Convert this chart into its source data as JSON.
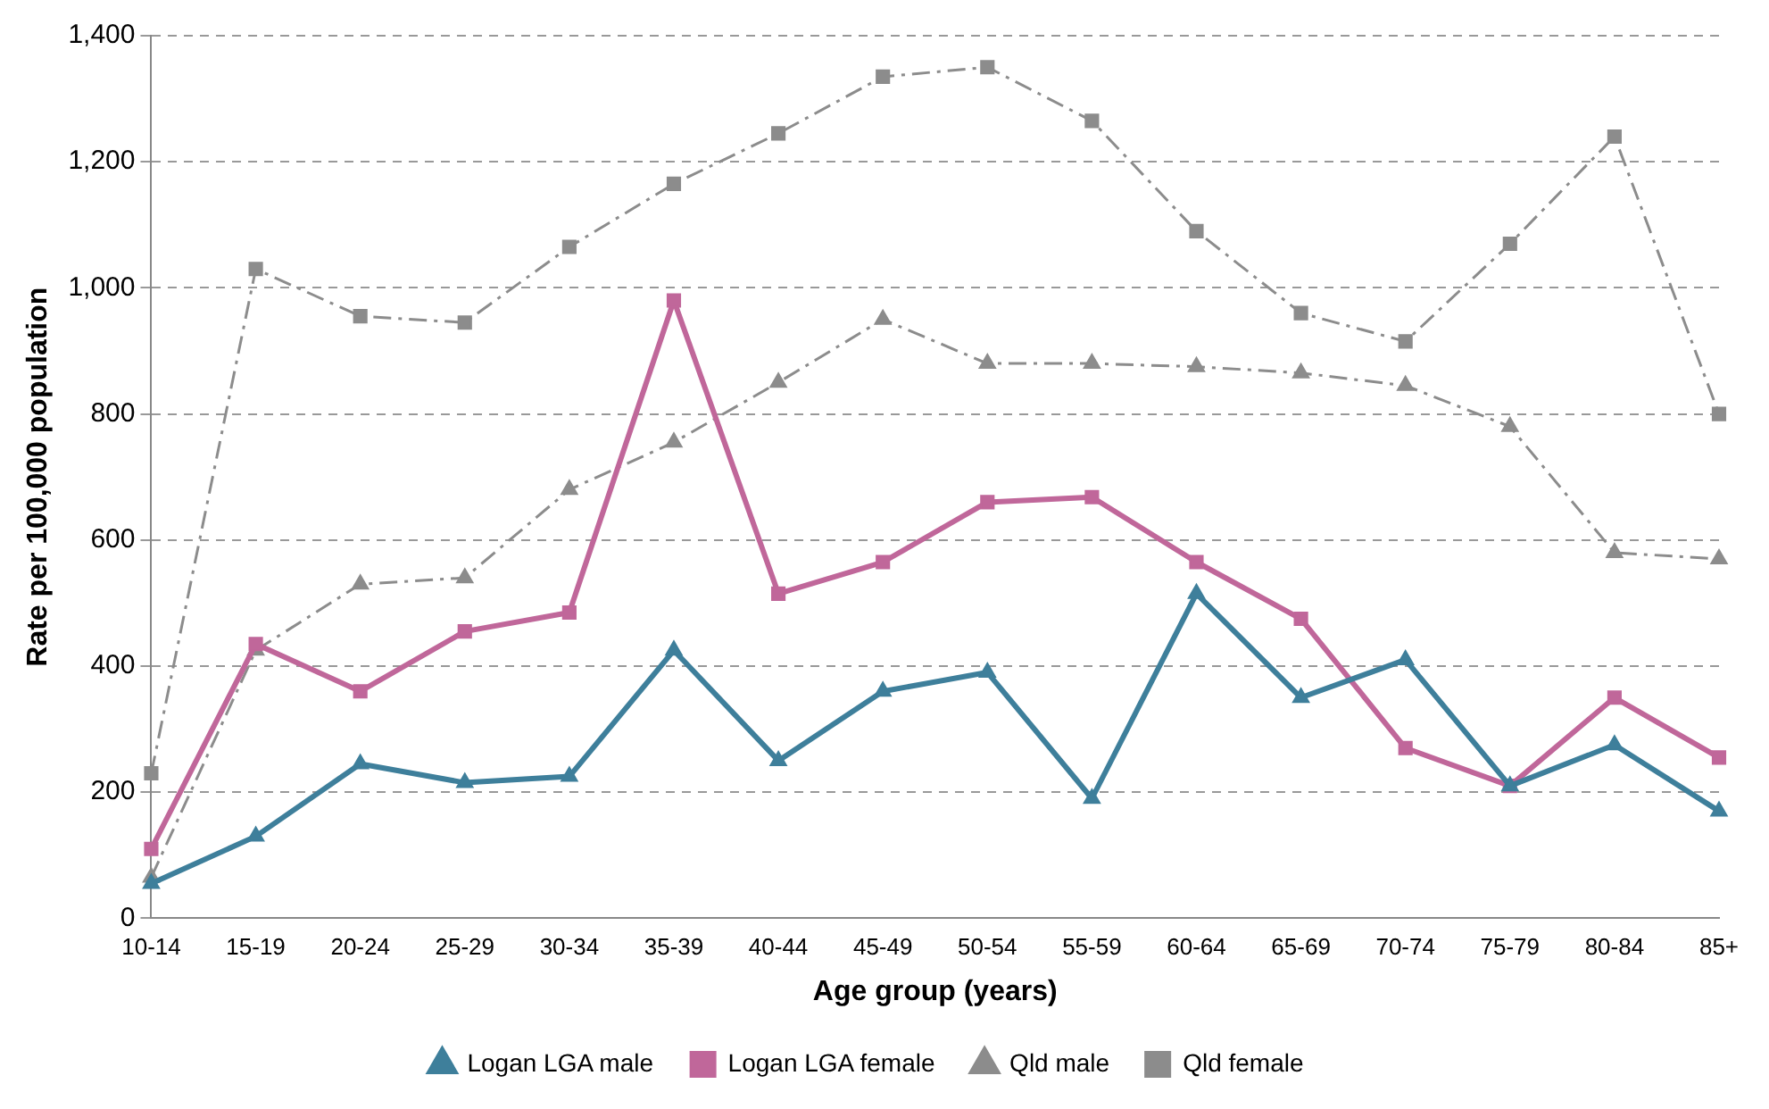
{
  "chart_data": {
    "type": "line",
    "xlabel": "Age group (years)",
    "ylabel": "Rate per 100,000 population",
    "categories": [
      "10-14",
      "15-19",
      "20-24",
      "25-29",
      "30-34",
      "35-39",
      "40-44",
      "45-49",
      "50-54",
      "55-59",
      "60-64",
      "65-69",
      "70-74",
      "75-79",
      "80-84",
      "85+"
    ],
    "series": [
      {
        "name": "Logan LGA male",
        "color": "#3e7f9b",
        "marker": "triangle",
        "line_style": "solid",
        "values": [
          55,
          130,
          245,
          215,
          225,
          425,
          250,
          360,
          390,
          190,
          515,
          350,
          410,
          210,
          275,
          170
        ]
      },
      {
        "name": "Logan LGA female",
        "color": "#c0679a",
        "marker": "square",
        "line_style": "solid",
        "values": [
          110,
          435,
          360,
          455,
          485,
          980,
          515,
          565,
          660,
          668,
          565,
          475,
          270,
          210,
          350,
          255
        ]
      },
      {
        "name": "Qld male",
        "color": "#8c8c8c",
        "marker": "triangle",
        "line_style": "dashed",
        "values": [
          65,
          425,
          530,
          540,
          680,
          755,
          850,
          950,
          880,
          880,
          875,
          865,
          845,
          780,
          580,
          570
        ]
      },
      {
        "name": "Qld female",
        "color": "#8c8c8c",
        "marker": "square",
        "line_style": "dashed",
        "values": [
          230,
          1030,
          955,
          945,
          1065,
          1165,
          1245,
          1335,
          1350,
          1265,
          1090,
          960,
          915,
          1070,
          1240,
          800
        ]
      }
    ],
    "ylim": [
      0,
      1400
    ],
    "yticks": [
      0,
      200,
      400,
      600,
      800,
      {
        "value": 1000,
        "label": "1,000"
      },
      {
        "value": 1200,
        "label": "1,200"
      },
      {
        "value": 1400,
        "label": "1,400"
      }
    ],
    "grid": "y",
    "legend": "bottom"
  }
}
